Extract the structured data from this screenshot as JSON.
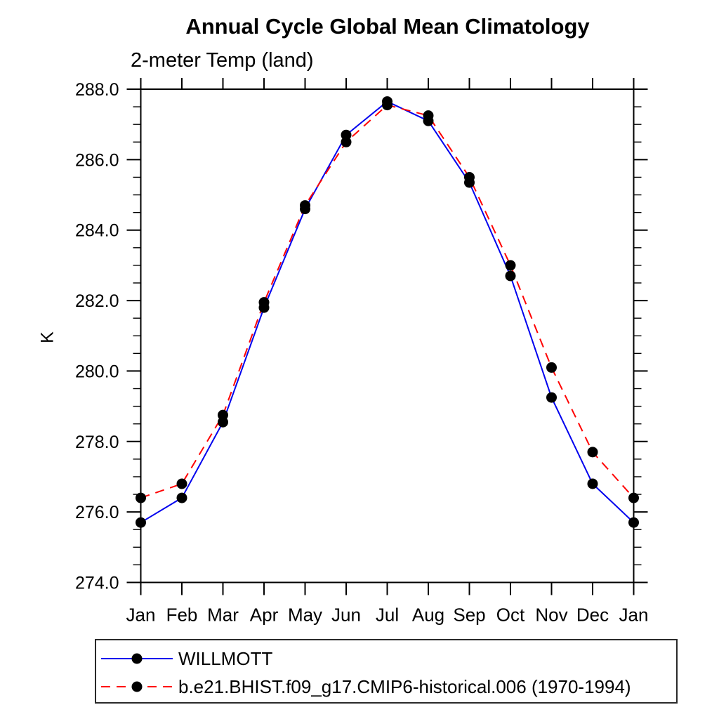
{
  "chart_data": {
    "type": "line",
    "title": "Annual Cycle Global Mean Climatology",
    "subtitle": "2-meter Temp (land)",
    "ylabel": "K",
    "ylim": [
      274.0,
      288.0
    ],
    "ytick_step": 2.0,
    "yminor_step": 0.5,
    "ytick_labels": [
      "274.0",
      "276.0",
      "278.0",
      "280.0",
      "282.0",
      "284.0",
      "286.0",
      "288.0"
    ],
    "categories": [
      "Jan",
      "Feb",
      "Mar",
      "Apr",
      "May",
      "Jun",
      "Jul",
      "Aug",
      "Sep",
      "Oct",
      "Nov",
      "Dec",
      "Jan"
    ],
    "grid": false,
    "legend_position": "bottom-left-box",
    "marker_color": "#000000",
    "series": [
      {
        "name": "WILLMOTT",
        "color": "#0000ee",
        "style": "solid",
        "marker": "filled-circle",
        "values": [
          275.7,
          276.4,
          278.55,
          281.8,
          284.6,
          286.7,
          287.65,
          287.1,
          285.35,
          282.7,
          279.25,
          276.8,
          275.7
        ]
      },
      {
        "name": "b.e21.BHIST.f09_g17.CMIP6-historical.006 (1970-1994)",
        "color": "#ff0000",
        "style": "dashed",
        "marker": "filled-circle",
        "values": [
          276.4,
          276.8,
          278.75,
          281.95,
          284.7,
          286.5,
          287.55,
          287.25,
          285.5,
          283.0,
          280.1,
          277.7,
          276.4
        ]
      }
    ]
  }
}
